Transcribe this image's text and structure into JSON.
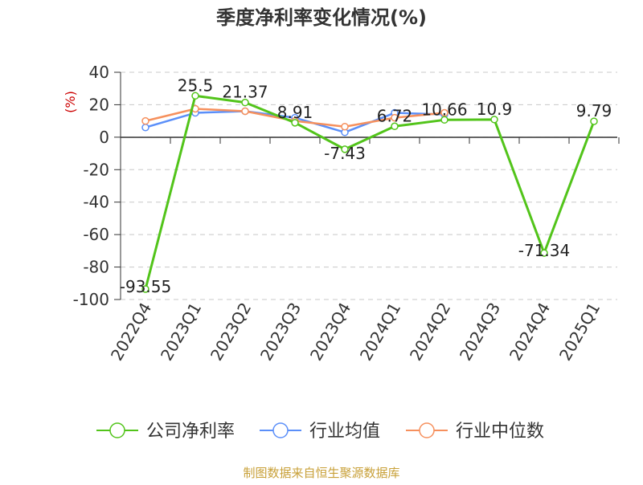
{
  "title": "季度净利率变化情况(%)",
  "source_note": "制图数据来自恒生聚源数据库",
  "colors": {
    "company": "#52c41a",
    "industry_mean": "#5b8ff9",
    "industry_median": "#f6905d",
    "ylabel": "#cc0000",
    "source": "#c8a038",
    "axis": "#333333",
    "grid": "#c8c8c8"
  },
  "chart_data": {
    "type": "line",
    "title": "季度净利率变化情况(%)",
    "ylabel": "(%)",
    "xlabel": "",
    "categories": [
      "2022Q4",
      "2023Q1",
      "2023Q2",
      "2023Q3",
      "2023Q4",
      "2024Q1",
      "2024Q2",
      "2024Q3",
      "2024Q4",
      "2025Q1"
    ],
    "ylim": [
      -100,
      40
    ],
    "yticks": [
      40,
      20,
      0,
      -20,
      -40,
      -60,
      -80,
      -100
    ],
    "grid": true,
    "legend_position": "bottom",
    "series": [
      {
        "name": "公司净利率",
        "key": "company",
        "values": [
          -93.55,
          25.5,
          21.37,
          8.91,
          -7.43,
          6.72,
          10.66,
          10.9,
          -71.34,
          9.79
        ],
        "labels": [
          "-93.55",
          "25.5",
          "21.37",
          "8.91",
          "-7.43",
          "6.72",
          "10.66",
          "10.9",
          "-71.34",
          "9.79"
        ]
      },
      {
        "name": "行业均值",
        "key": "industry_mean",
        "values": [
          6,
          15,
          16,
          12,
          3,
          15,
          14,
          null,
          null,
          null
        ]
      },
      {
        "name": "行业中位数",
        "key": "industry_median",
        "values": [
          10,
          17.5,
          16,
          10,
          6.5,
          12,
          15,
          null,
          null,
          null
        ]
      }
    ]
  }
}
